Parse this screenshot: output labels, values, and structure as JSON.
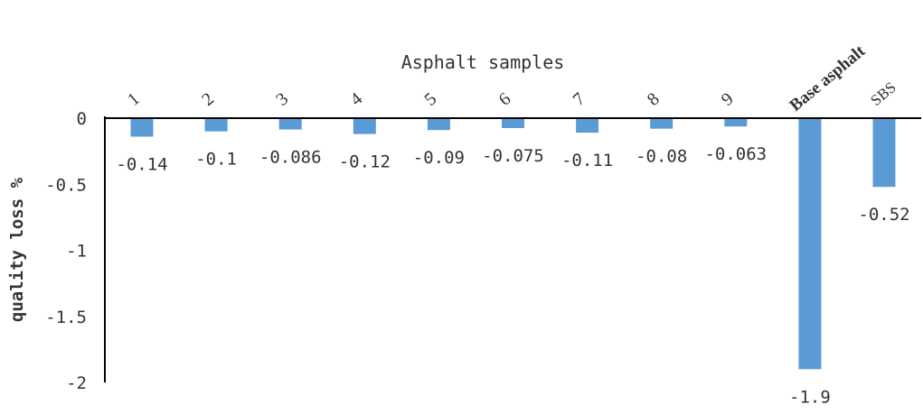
{
  "chart_data": {
    "type": "bar",
    "title": "",
    "xlabel": "Asphalt samples",
    "ylabel": "quality loss %",
    "categories": [
      "1",
      "2",
      "3",
      "4",
      "5",
      "6",
      "7",
      "8",
      "9",
      "Base asphalt",
      "SBS"
    ],
    "values": [
      -0.14,
      -0.1,
      -0.086,
      -0.12,
      -0.09,
      -0.075,
      -0.11,
      -0.08,
      -0.063,
      -1.9,
      -0.52
    ],
    "data_labels": [
      "-0.14",
      "-0.1",
      "-0.086",
      "-0.12",
      "-0.09",
      "-0.075",
      "-0.11",
      "-0.08",
      "-0.063",
      "-1.9",
      "-0.52"
    ],
    "ylim": [
      -2,
      0
    ],
    "yticks": [
      0,
      -0.5,
      -1,
      -1.5,
      -2
    ],
    "ytick_labels": [
      "0",
      "-0.5",
      "-1",
      "-1.5",
      "-2"
    ],
    "x_axis_position": "top",
    "grid": false,
    "legend": "none",
    "bar_color": "#5b9bd5",
    "axis_color": "#000000"
  }
}
